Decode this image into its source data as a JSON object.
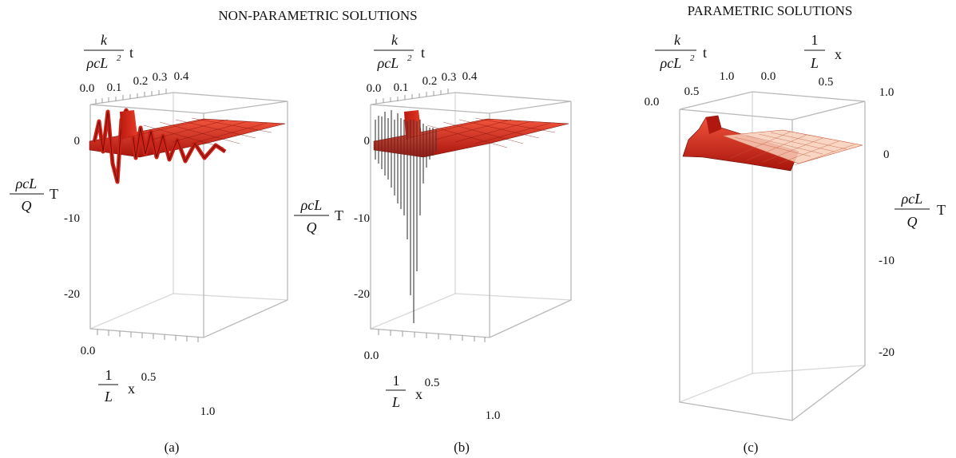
{
  "titles": {
    "nonparametric": "NON-PARAMETRIC SOLUTIONS",
    "parametric": "PARAMETRIC SOLUTIONS"
  },
  "symbols": {
    "t_num": "k",
    "t_den": "ρcL",
    "t_sup": "2",
    "t_var": "t",
    "x_num": "1",
    "x_den": "L",
    "x_var": "x",
    "T_num": "ρcL",
    "T_den": "Q",
    "T_var": "T"
  },
  "panels": [
    {
      "caption": "(a)",
      "t_ticks": [
        "0.0",
        "0.1",
        "0.2",
        "0.3",
        "0.4"
      ],
      "x_ticks": [
        "0.0",
        "0.5",
        "1.0"
      ],
      "T_ticks": [
        "0",
        "-10",
        "-20"
      ]
    },
    {
      "caption": "(b)",
      "t_ticks": [
        "0.0",
        "0.1",
        "0.2",
        "0.3",
        "0.4"
      ],
      "x_ticks": [
        "0.0",
        "0.5",
        "1.0"
      ],
      "T_ticks": [
        "0",
        "-10",
        "-20"
      ]
    },
    {
      "caption": "(c)",
      "t_ticks": [
        "0.0",
        "0.5",
        "1.0"
      ],
      "x_ticks": [
        "0.0",
        "0.5",
        "1.0"
      ],
      "T_ticks": [
        "0",
        "-10",
        "-20"
      ]
    }
  ],
  "colors": {
    "surface": "#cc2216",
    "surface_light": "#f2553d",
    "parametric_grid": "#f4b49c",
    "frame": "#b8b8b8"
  }
}
